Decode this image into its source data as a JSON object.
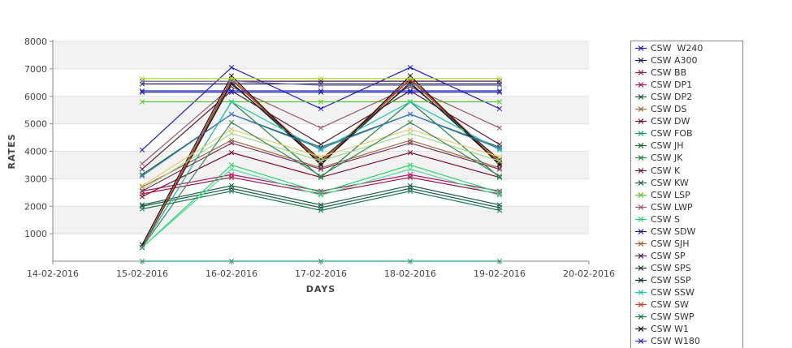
{
  "chart_data": {
    "type": "line",
    "xlabel": "DAYS",
    "ylabel": "RATES",
    "x_ticks": [
      "14-02-2016",
      "15-02-2016",
      "16-02-2016",
      "17-02-2016",
      "18-02-2016",
      "19-02-2016",
      "20-02-2016"
    ],
    "x": [
      "15-02-2016",
      "16-02-2016",
      "17-02-2016",
      "18-02-2016",
      "19-02-2016"
    ],
    "y_ticks": [
      1000,
      2000,
      3000,
      4000,
      5000,
      6000,
      7000,
      8000
    ],
    "ylim": [
      0,
      8000
    ],
    "grid": "horizontal alternating bands",
    "legend": "right",
    "series": [
      {
        "name": "CSW  W240",
        "color": "#1c1cd4",
        "values": [
          4050,
          7050,
          5550,
          7050,
          5550
        ]
      },
      {
        "name": "CSW A300",
        "color": "#1a1a5c",
        "values": [
          6450,
          6450,
          6450,
          6450,
          6450
        ]
      },
      {
        "name": "CSW BB",
        "color": "#a0183c",
        "values": [
          2450,
          3050,
          2450,
          3050,
          2450
        ]
      },
      {
        "name": "CSW DP1",
        "color": "#b0186c",
        "values": [
          2550,
          3150,
          2550,
          3150,
          2550
        ]
      },
      {
        "name": "CSW DP2",
        "color": "#155a35",
        "values": [
          2050,
          2750,
          2050,
          2750,
          2050
        ]
      },
      {
        "name": "CSW DS",
        "color": "#a06a3a",
        "values": [
          2700,
          4400,
          3400,
          4400,
          3400
        ]
      },
      {
        "name": "CSW DW",
        "color": "#7a0c2a",
        "values": [
          2350,
          3950,
          3050,
          3950,
          3050
        ]
      },
      {
        "name": "CSW FOB",
        "color": "#1aa06a",
        "values": [
          0,
          0,
          0,
          0,
          0
        ]
      },
      {
        "name": "CSW JH",
        "color": "#1a6a2a",
        "values": [
          3150,
          5350,
          4150,
          5350,
          4150
        ]
      },
      {
        "name": "CSW JK",
        "color": "#1a8a3a",
        "values": [
          500,
          5800,
          3050,
          5800,
          3050
        ]
      },
      {
        "name": "CSW K",
        "color": "#5a1a3a",
        "values": [
          3350,
          6200,
          4250,
          6200,
          4250
        ]
      },
      {
        "name": "CSW KW",
        "color": "#1a5a4a",
        "values": [
          2000,
          2650,
          1950,
          2650,
          1950
        ]
      },
      {
        "name": "CSW LSP",
        "color": "#5ac82a",
        "values": [
          5800,
          5800,
          5800,
          5800,
          5800
        ]
      },
      {
        "name": "CSW LWP",
        "color": "#9a5a6a",
        "values": [
          3550,
          6350,
          4850,
          6350,
          4850
        ]
      },
      {
        "name": "CSW S",
        "color": "#2ad46a",
        "values": [
          500,
          3500,
          2500,
          3500,
          2500
        ]
      },
      {
        "name": "CSW SDW",
        "color": "#1a1aa0",
        "values": [
          6150,
          6150,
          6150,
          6150,
          6150
        ]
      },
      {
        "name": "CSW SJH",
        "color": "#b05a2a",
        "values": [
          500,
          6650,
          3650,
          6650,
          3650
        ]
      },
      {
        "name": "CSW SP",
        "color": "#4a1a5a",
        "values": [
          6550,
          6550,
          6550,
          6550,
          6550
        ]
      },
      {
        "name": "CSW SPS",
        "color": "#1a3a2a",
        "values": [
          500,
          6450,
          3700,
          6450,
          3700
        ]
      },
      {
        "name": "CSW SSP",
        "color": "#0a2a3a",
        "values": [
          500,
          6500,
          3550,
          6500,
          3550
        ]
      },
      {
        "name": "CSW SSW",
        "color": "#1ac8b0",
        "values": [
          500,
          5800,
          4050,
          5800,
          4050
        ]
      },
      {
        "name": "CSW SW",
        "color": "#d03a1a",
        "values": [
          500,
          6600,
          3600,
          6600,
          3600
        ]
      },
      {
        "name": "CSW SWP",
        "color": "#1a7a4a",
        "values": [
          1900,
          2550,
          1850,
          2550,
          1850
        ]
      },
      {
        "name": "CSW W1",
        "color": "#111111",
        "values": [
          600,
          6750,
          3500,
          6750,
          3500
        ]
      },
      {
        "name": "CSW W180",
        "color": "#2a2ac8",
        "values": [
          6200,
          6200,
          6200,
          6200,
          6200
        ]
      },
      {
        "name": "",
        "color": "#a8e020",
        "values": [
          6650,
          6650,
          6650,
          6650,
          6650
        ]
      },
      {
        "name": "",
        "color": "#e8c870",
        "values": [
          2750,
          4800,
          3800,
          4800,
          3800
        ]
      },
      {
        "name": "",
        "color": "#9ad88a",
        "values": [
          2600,
          4650,
          3650,
          4650,
          3650
        ]
      },
      {
        "name": "",
        "color": "#7a7aa0",
        "values": [
          6550,
          6550,
          6400,
          6400,
          6400
        ]
      },
      {
        "name": "",
        "color": "#3a7acc",
        "values": [
          3100,
          5350,
          4100,
          5350,
          4100
        ]
      },
      {
        "name": "",
        "color": "#7a2a5a",
        "values": [
          2550,
          4300,
          3350,
          4300,
          3350
        ]
      },
      {
        "name": "",
        "color": "#4ae0a0",
        "values": [
          500,
          3350,
          2400,
          3350,
          2400
        ]
      },
      {
        "name": "",
        "color": "#3a8a5a",
        "values": [
          500,
          5050,
          3100,
          5050,
          3100
        ]
      }
    ]
  }
}
